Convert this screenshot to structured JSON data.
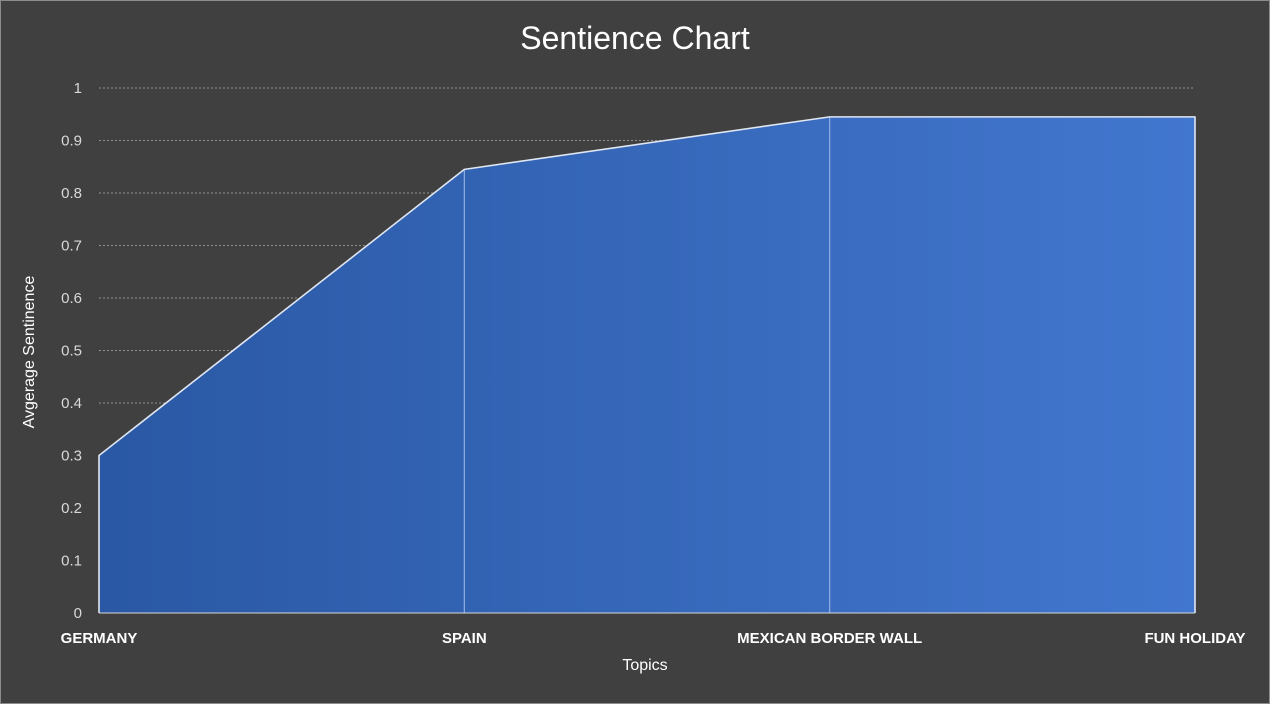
{
  "chart_data": {
    "type": "area",
    "title": "Sentience Chart",
    "xlabel": "Topics",
    "ylabel": "Avgerage Sentinence",
    "categories": [
      "GERMANY",
      "SPAIN",
      "MEXICAN BORDER WALL",
      "FUN HOLIDAY"
    ],
    "values": [
      0.3,
      0.845,
      0.945,
      0.945
    ],
    "ylim": [
      0,
      1
    ],
    "yticks": [
      "0",
      "0.1",
      "0.2",
      "0.3",
      "0.4",
      "0.5",
      "0.6",
      "0.7",
      "0.8",
      "0.9",
      "1"
    ],
    "grid": true,
    "legend": "none"
  },
  "colors": {
    "background": "#404040",
    "area_start": "#2a58a4",
    "area_end": "#4277cf",
    "outline": "#dfe6f2",
    "gridline": "#8f8f8f"
  }
}
